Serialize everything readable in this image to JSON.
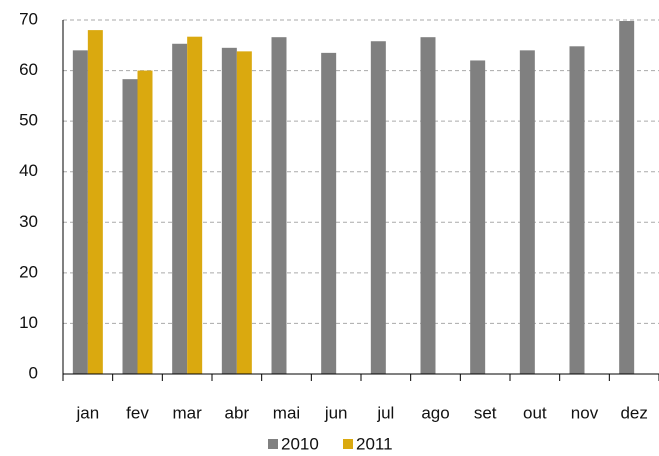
{
  "chart_data": {
    "type": "bar",
    "categories": [
      "jan",
      "fev",
      "mar",
      "abr",
      "mai",
      "jun",
      "jul",
      "ago",
      "set",
      "out",
      "nov",
      "dez"
    ],
    "series": [
      {
        "name": "2010",
        "color": "#808080",
        "values": [
          64,
          58.3,
          65.3,
          64.5,
          66.6,
          63.5,
          65.8,
          66.6,
          62,
          64,
          64.8,
          69.8
        ]
      },
      {
        "name": "2011",
        "color": "#daa90f",
        "values": [
          68,
          60,
          66.7,
          63.8,
          null,
          null,
          null,
          null,
          null,
          null,
          null,
          null
        ]
      }
    ],
    "ylim": [
      0,
      70
    ],
    "yticks": [
      0,
      10,
      20,
      30,
      40,
      50,
      60,
      70
    ],
    "grid": true
  }
}
